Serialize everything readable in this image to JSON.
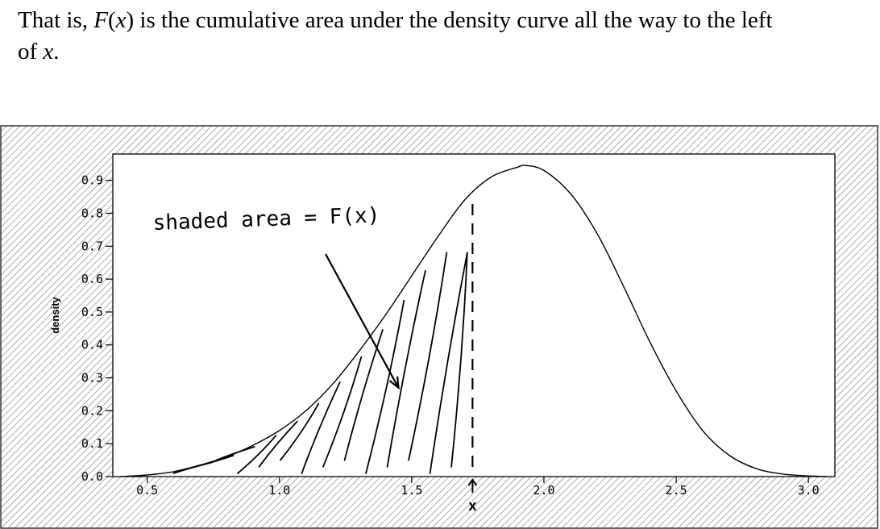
{
  "paragraph": {
    "prefix": "That is, ",
    "F": "F",
    "open": "(",
    "x1": "x",
    "middle": ") is the cumulative area under the density curve all the way to the left",
    "line2_prefix": "of ",
    "x2": "x",
    "suffix": "."
  },
  "chart_data": {
    "type": "area",
    "title": "",
    "xlabel": "",
    "ylabel": "density",
    "xlim": [
      0.37,
      3.1
    ],
    "ylim": [
      0.0,
      0.98
    ],
    "x_ticks": [
      "0.5",
      "1.0",
      "1.5",
      "2.0",
      "2.5",
      "3.0"
    ],
    "y_ticks": [
      "0.0",
      "0.1",
      "0.2",
      "0.3",
      "0.4",
      "0.5",
      "0.6",
      "0.7",
      "0.8",
      "0.9"
    ],
    "density_curve": {
      "x": [
        0.4,
        0.5,
        0.6,
        0.7,
        0.8,
        0.9,
        1.0,
        1.1,
        1.2,
        1.3,
        1.4,
        1.5,
        1.6,
        1.7,
        1.8,
        1.9,
        1.93,
        2.0,
        2.1,
        2.2,
        2.3,
        2.4,
        2.5,
        2.6,
        2.7,
        2.8,
        2.9,
        3.0,
        3.07
      ],
      "y": [
        0.0,
        0.005,
        0.015,
        0.035,
        0.06,
        0.095,
        0.14,
        0.2,
        0.28,
        0.38,
        0.49,
        0.61,
        0.73,
        0.84,
        0.91,
        0.94,
        0.945,
        0.93,
        0.86,
        0.74,
        0.58,
        0.41,
        0.26,
        0.14,
        0.065,
        0.025,
        0.008,
        0.002,
        0.0
      ]
    },
    "x_marker": {
      "x": 1.73,
      "label": "x",
      "style": "dashed vertical line"
    },
    "annotation": {
      "text": "shaded area = F(x)",
      "handwritten": true,
      "points_to_x": 1.45,
      "points_to_y": 0.27
    },
    "shaded_region": {
      "from_x": 0.6,
      "to_x": 1.73,
      "style": "hand-drawn hatching"
    },
    "grid": false,
    "legend": "none",
    "colors": {
      "curve": "#000000",
      "background_pattern": "#888888",
      "plot_background": "#ffffff"
    }
  }
}
